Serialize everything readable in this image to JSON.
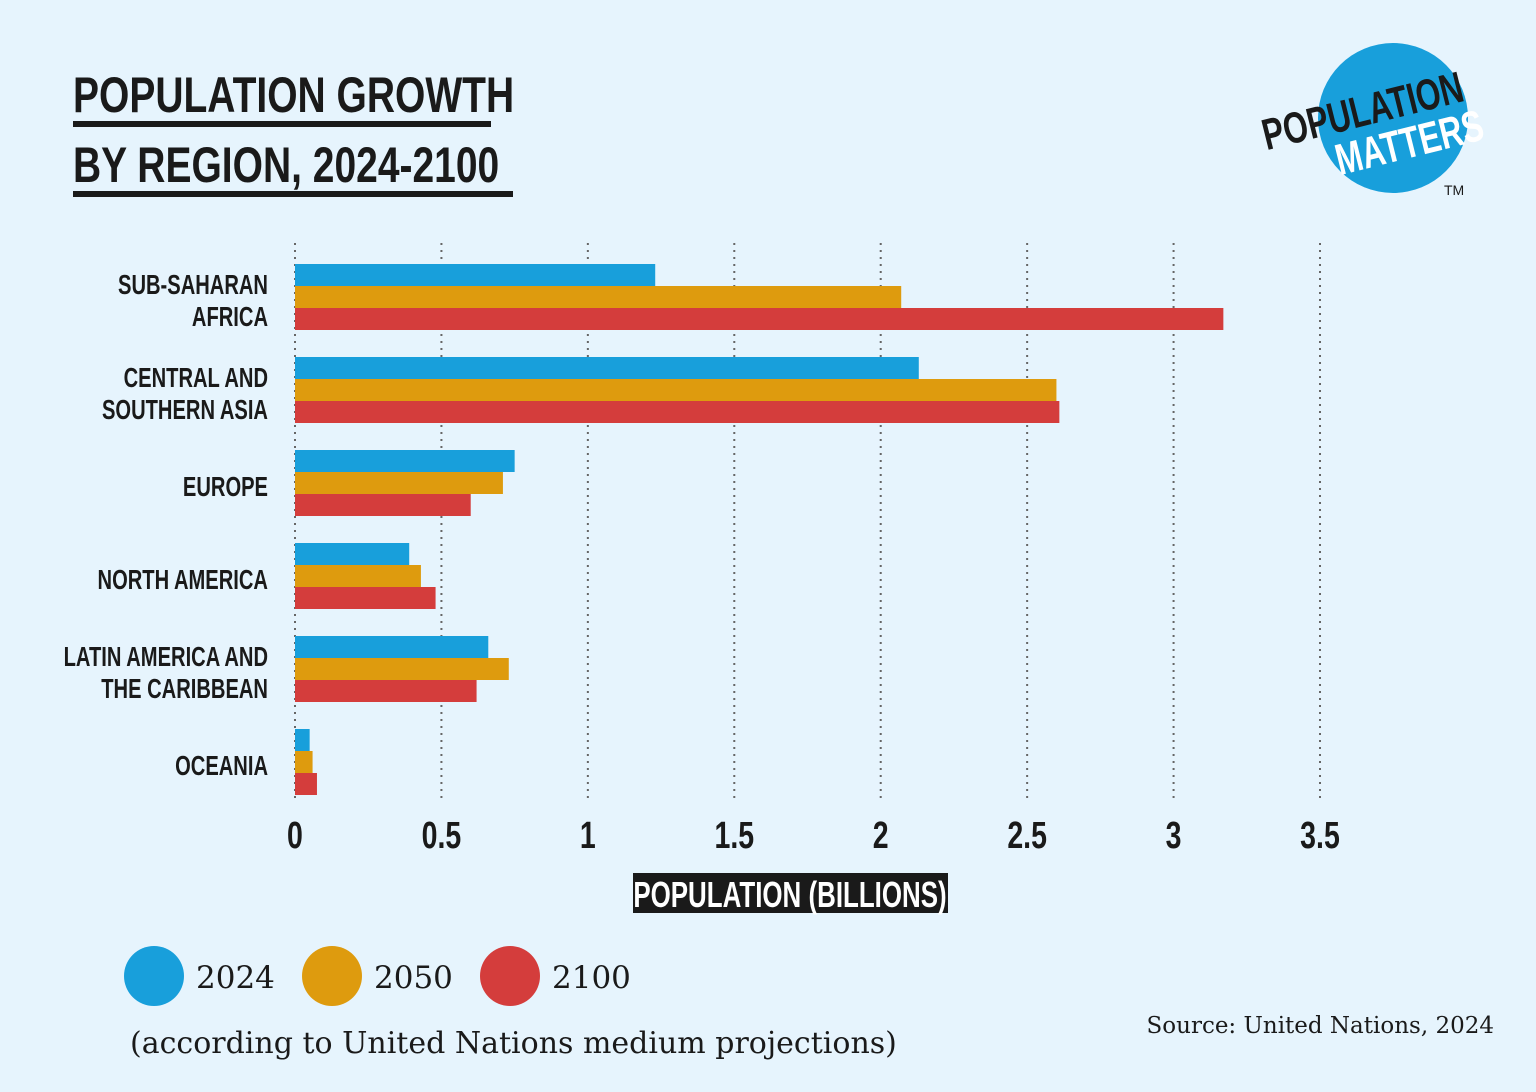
{
  "title_line1": "POPULATION GROWTH",
  "title_line2": "BY REGION, 2024-2100",
  "logo": {
    "text1": "POPULATION",
    "text2": "MATTERS",
    "tm": "TM"
  },
  "footnote": "(according to United Nations medium projections)",
  "source": "Source: United Nations, 2024",
  "chart_data": {
    "type": "bar",
    "orientation": "horizontal",
    "title": "POPULATION GROWTH BY REGION, 2024-2100",
    "xlabel": "POPULATION (BILLIONS)",
    "ylabel": "",
    "xlim": [
      0,
      3.5
    ],
    "xticks": [
      "0",
      "0.5",
      "1",
      "1.5",
      "2",
      "2.5",
      "3",
      "3.5"
    ],
    "xtick_values": [
      0,
      0.5,
      1,
      1.5,
      2,
      2.5,
      3,
      3.5
    ],
    "grid": "vertical dotted",
    "legend": "bottom-left",
    "categories": [
      [
        "SUB-SAHARAN",
        "AFRICA"
      ],
      [
        "CENTRAL AND",
        "SOUTHERN ASIA"
      ],
      [
        "EUROPE"
      ],
      [
        "NORTH AMERICA"
      ],
      [
        "LATIN AMERICA AND",
        "THE CARIBBEAN"
      ],
      [
        "OCEANIA"
      ]
    ],
    "series": [
      {
        "name": "2024",
        "color": "#189fdb",
        "values": [
          1.23,
          2.13,
          0.75,
          0.39,
          0.66,
          0.05
        ]
      },
      {
        "name": "2050",
        "color": "#de9b0e",
        "values": [
          2.07,
          2.6,
          0.71,
          0.43,
          0.73,
          0.06
        ]
      },
      {
        "name": "2100",
        "color": "#d43d3c",
        "values": [
          3.17,
          2.61,
          0.6,
          0.48,
          0.62,
          0.075
        ]
      }
    ]
  }
}
